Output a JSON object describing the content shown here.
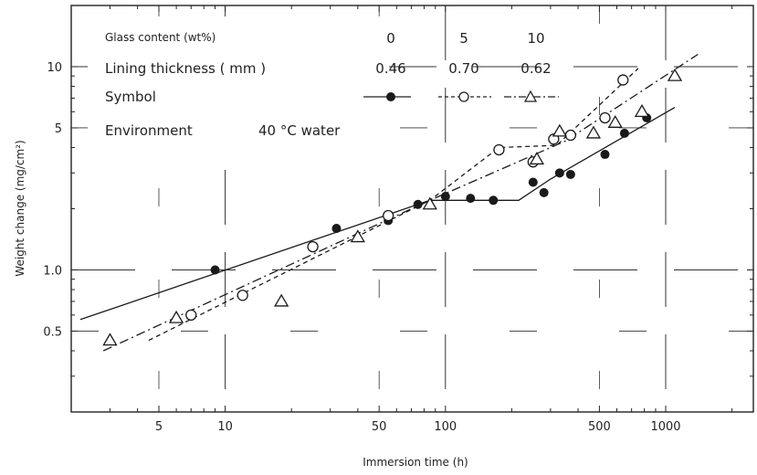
{
  "chart_data": {
    "type": "scatter",
    "xlabel": "Immersion time (h)",
    "ylabel": "Weight change (mg/cm²)",
    "x_scale": "log",
    "y_scale": "log",
    "xlim": [
      2,
      2500
    ],
    "ylim": [
      0.2,
      20
    ],
    "x_tick_labels": [
      {
        "value": 5,
        "label": "5"
      },
      {
        "value": 10,
        "label": "10"
      },
      {
        "value": 50,
        "label": "50"
      },
      {
        "value": 100,
        "label": "100"
      },
      {
        "value": 500,
        "label": "500"
      },
      {
        "value": 1000,
        "label": "1000"
      }
    ],
    "y_tick_labels": [
      {
        "value": 10,
        "label": "10"
      },
      {
        "value": 5,
        "label": "5"
      },
      {
        "value": 1.0,
        "label": "1.0"
      },
      {
        "value": 0.5,
        "label": "0.5"
      }
    ],
    "legend_table": {
      "rows": [
        {
          "label": "Glass content  (wt%)",
          "values": [
            "0",
            "5",
            "10"
          ]
        },
        {
          "label": "Lining thickness ( mm )",
          "values": [
            "0.46",
            "0.70",
            "0.62"
          ]
        },
        {
          "label": "Symbol",
          "values": [
            "",
            "",
            ""
          ]
        },
        {
          "label": "Environment",
          "values": [
            "40 °C water"
          ]
        }
      ]
    },
    "series": [
      {
        "glass_content": "0",
        "lining_thickness": "0.46",
        "marker": "filled-circle",
        "line": "solid",
        "color": "#1a1a1a",
        "points": [
          [
            9,
            1.0
          ],
          [
            32,
            1.6
          ],
          [
            55,
            1.75
          ],
          [
            75,
            2.1
          ],
          [
            100,
            2.3
          ],
          [
            130,
            2.25
          ],
          [
            165,
            2.2
          ],
          [
            250,
            2.7
          ],
          [
            280,
            2.4
          ],
          [
            330,
            3.0
          ],
          [
            370,
            2.95
          ],
          [
            530,
            3.7
          ],
          [
            650,
            4.7
          ],
          [
            820,
            5.6
          ]
        ],
        "fit_line": [
          [
            2.2,
            0.57
          ],
          [
            85,
            2.2
          ],
          [
            215,
            2.2
          ],
          [
            300,
            2.8
          ],
          [
            1100,
            6.3
          ]
        ]
      },
      {
        "glass_content": "5",
        "lining_thickness": "0.70",
        "marker": "open-circle",
        "line": "dashed",
        "color": "#1a1a1a",
        "points": [
          [
            7,
            0.6
          ],
          [
            12,
            0.75
          ],
          [
            25,
            1.3
          ],
          [
            55,
            1.85
          ],
          [
            175,
            3.9
          ],
          [
            250,
            3.4
          ],
          [
            310,
            4.4
          ],
          [
            370,
            4.6
          ],
          [
            530,
            5.6
          ],
          [
            640,
            8.6
          ]
        ],
        "fit_line": [
          [
            4.5,
            0.45
          ],
          [
            85,
            2.2
          ],
          [
            175,
            4.0
          ],
          [
            320,
            4.1
          ],
          [
            750,
            9.8
          ]
        ]
      },
      {
        "glass_content": "10",
        "lining_thickness": "0.62",
        "marker": "open-triangle",
        "line": "dash-dot",
        "color": "#1a1a1a",
        "points": [
          [
            3,
            0.45
          ],
          [
            6,
            0.58
          ],
          [
            18,
            0.7
          ],
          [
            40,
            1.45
          ],
          [
            85,
            2.1
          ],
          [
            260,
            3.5
          ],
          [
            330,
            4.8
          ],
          [
            470,
            4.7
          ],
          [
            590,
            5.3
          ],
          [
            780,
            6.0
          ],
          [
            1100,
            9.0
          ]
        ],
        "fit_line": [
          [
            2.8,
            0.4
          ],
          [
            85,
            2.2
          ],
          [
            350,
            4.3
          ],
          [
            1400,
            11.5
          ]
        ]
      }
    ]
  }
}
